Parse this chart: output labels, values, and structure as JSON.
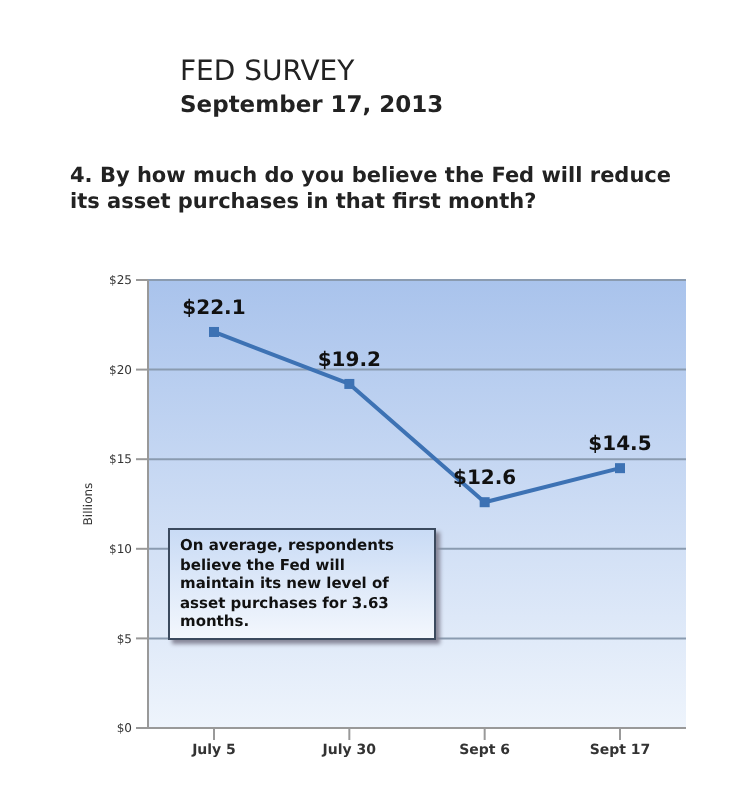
{
  "chart_data": {
    "type": "line",
    "title": "FED SURVEY",
    "subtitle": "September 17, 2013",
    "ylabel": "Billions",
    "annotations": [
      "4. By how much do you believe the Fed will reduce its asset purchases in that first month?",
      "On average, respondents believe the Fed  will maintain its new level of asset purchases for 3.63 months."
    ],
    "categories": [
      "July 5",
      "July 30",
      "Sept 6",
      "Sept 17"
    ],
    "series": [
      {
        "color": "#3d72b4",
        "values": [
          22.1,
          19.2,
          12.6,
          14.5
        ],
        "value_labels": [
          "$22.1",
          "$19.2",
          "$12.6",
          "$14.5"
        ]
      }
    ],
    "ylim": [
      0,
      25
    ],
    "yticks": [
      {
        "value": 0,
        "label": "$0"
      },
      {
        "value": 5,
        "label": "$5"
      },
      {
        "value": 10,
        "label": "$10"
      },
      {
        "value": 15,
        "label": "$15"
      },
      {
        "value": 20,
        "label": "$20"
      },
      {
        "value": 25,
        "label": "$25"
      }
    ],
    "grid": "y",
    "marker": "square",
    "line_style": "solid"
  }
}
